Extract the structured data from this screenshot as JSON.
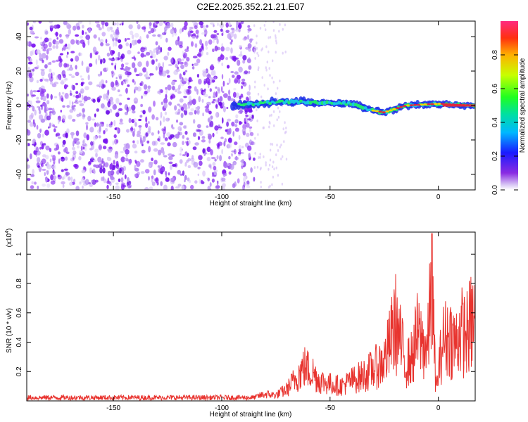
{
  "title": "C2E2.2025.352.21.21.E07",
  "colors": {
    "snr_line": "#e8332e",
    "spectro_noise_dark": "#7a10f0",
    "spectro_noise_light": "#c8a8f5",
    "spectro_signal_core": "#e0283c",
    "spectro_signal_mid": "#20e870",
    "spectro_signal_edge": "#1c30e8"
  },
  "chart_data": [
    {
      "type": "heatmap",
      "name": "spectrogram",
      "title": "C2E2.2025.352.21.21.E07",
      "xlabel": "Height of straight line (km)",
      "ylabel": "Frequency (Hz)",
      "xlim": [
        -190,
        17
      ],
      "ylim": [
        -49,
        49
      ],
      "xticks": [
        -150,
        -100,
        -50,
        0
      ],
      "yticks": [
        -40,
        -20,
        0,
        20,
        40
      ],
      "colorbar": {
        "label": "Normalized spectral amplitude",
        "range": [
          0,
          1
        ],
        "ticks": [
          "0.0",
          "0.2",
          "0.4",
          "0.6",
          "0.8"
        ],
        "tick_values": [
          0.0,
          0.2,
          0.4,
          0.6,
          0.8
        ]
      },
      "signal_track": {
        "description_points": [
          {
            "x": -95,
            "freq": 0
          },
          {
            "x": -75,
            "freq": 2
          },
          {
            "x": -60,
            "freq": 2
          },
          {
            "x": -40,
            "freq": 1
          },
          {
            "x": -30,
            "freq": -3
          },
          {
            "x": -25,
            "freq": -4
          },
          {
            "x": -15,
            "freq": 0
          },
          {
            "x": 0,
            "freq": 1
          },
          {
            "x": 17,
            "freq": 0
          }
        ]
      },
      "noise_region_x": [
        -190,
        -85
      ]
    },
    {
      "type": "line",
      "name": "snr",
      "xlabel": "Height of straight line (km)",
      "ylabel": "SNR (10 * v/v)",
      "y_multiplier_label": "(x10",
      "y_multiplier_exp": "4",
      "xlim": [
        -190,
        17
      ],
      "ylim": [
        0,
        1.15
      ],
      "xticks": [
        -150,
        -100,
        -50,
        0
      ],
      "yticks": [
        0.2,
        0.4,
        0.6,
        0.8,
        1
      ],
      "ytick_labels": [
        "0.2",
        "0.4",
        "0.6",
        "0.8",
        "1"
      ],
      "series": [
        {
          "name": "SNR",
          "x": [
            -190,
            -150,
            -100,
            -85,
            -80,
            -75,
            -70,
            -65,
            -62,
            -58,
            -55,
            -50,
            -45,
            -40,
            -35,
            -30,
            -25,
            -22,
            -20,
            -15,
            -12,
            -10,
            -7,
            -5,
            -3,
            -2,
            -1,
            0,
            2,
            5,
            8,
            10,
            13,
            15,
            17
          ],
          "y": [
            0.02,
            0.02,
            0.02,
            0.03,
            0.06,
            0.05,
            0.1,
            0.22,
            0.3,
            0.25,
            0.18,
            0.15,
            0.13,
            0.18,
            0.22,
            0.28,
            0.35,
            0.52,
            0.7,
            0.32,
            0.38,
            0.58,
            0.5,
            0.45,
            1.08,
            0.5,
            0.1,
            0.25,
            0.52,
            0.58,
            0.5,
            0.62,
            0.58,
            0.68,
            0.7
          ]
        }
      ]
    }
  ]
}
